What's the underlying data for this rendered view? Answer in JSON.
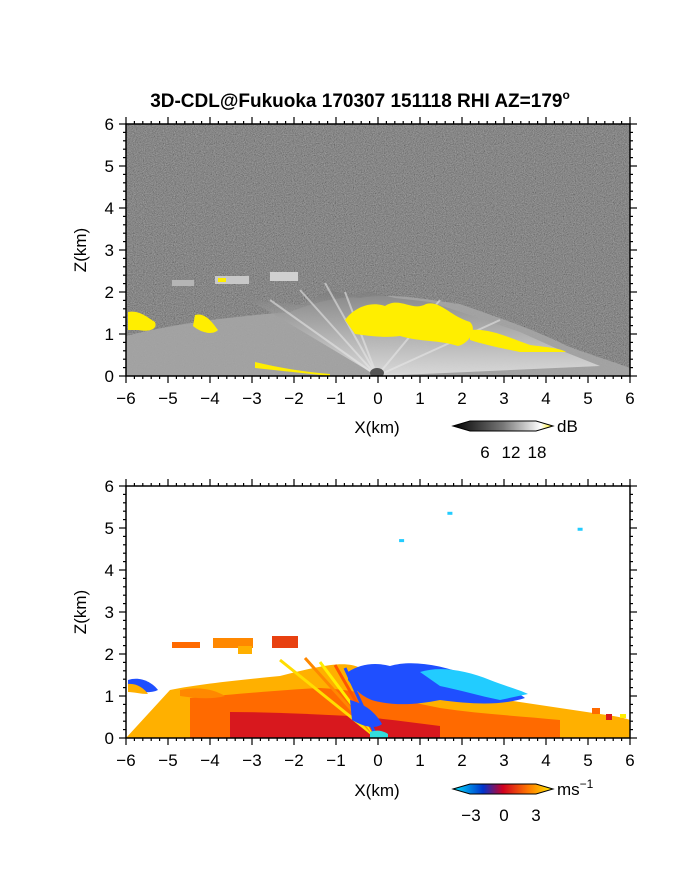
{
  "chart_data": [
    {
      "type": "heatmap",
      "title": "3D-CDL@Fukuoka 170307 151118 RHI AZ=179",
      "title_superscript": "o",
      "xlabel": "X(km)",
      "ylabel": "Z(km)",
      "xlim": [
        -6,
        6
      ],
      "ylim": [
        0,
        6
      ],
      "xticks": [
        -6,
        -5,
        -4,
        -3,
        -2,
        -1,
        0,
        1,
        2,
        3,
        4,
        5,
        6
      ],
      "yticks": [
        0,
        1,
        2,
        3,
        4,
        5,
        6
      ],
      "variable": "SNR",
      "colorbar": {
        "unit": "dB",
        "ticks": [
          6,
          12,
          18
        ],
        "colors": [
          "#000000",
          "#ffffff",
          "#ffee00"
        ]
      },
      "background": "noise (dark gray)",
      "features": [
        {
          "kind": "aerosol layer",
          "x_range": [
            -6,
            4.5
          ],
          "top_km": 1.7,
          "color": "#ffee00"
        },
        {
          "kind": "elevated patch",
          "x": -4.3,
          "z": 2.2
        },
        {
          "kind": "elevated patch",
          "x": -3.3,
          "z": 2.3
        },
        {
          "kind": "elevated patch",
          "x": -2.1,
          "z": 2.4
        }
      ]
    },
    {
      "type": "heatmap",
      "xlabel": "X(km)",
      "ylabel": "Z(km)",
      "xlim": [
        -6,
        6
      ],
      "ylim": [
        0,
        6
      ],
      "xticks": [
        -6,
        -5,
        -4,
        -3,
        -2,
        -1,
        0,
        1,
        2,
        3,
        4,
        5,
        6
      ],
      "yticks": [
        0,
        1,
        2,
        3,
        4,
        5,
        6
      ],
      "variable": "Doppler velocity",
      "colorbar": {
        "unit": "ms",
        "unit_superscript": "−1",
        "ticks": [
          "−3",
          "0",
          "3"
        ],
        "colors": [
          "#00e5ff",
          "#0033cc",
          "#d00020",
          "#ff7700",
          "#ffee00"
        ]
      },
      "features": [
        {
          "kind": "negative velocity (toward)",
          "x_range": [
            -0.5,
            3.5
          ],
          "z_range": [
            1.0,
            1.8
          ],
          "color": "#1f4fff"
        },
        {
          "kind": "positive velocity (away)",
          "x_range": [
            -4,
            5
          ],
          "z_range": [
            0,
            1.0
          ],
          "color": "#ff6a00"
        },
        {
          "kind": "isolated pixel",
          "x": 1.7,
          "z": 5.35
        },
        {
          "kind": "isolated pixel",
          "x": 0.55,
          "z": 4.7
        },
        {
          "kind": "isolated pixel",
          "x": 4.8,
          "z": 4.97
        }
      ]
    }
  ]
}
